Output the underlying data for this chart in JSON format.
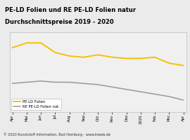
{
  "title_line1": "PE-LD Folien und RE PE-LD Folien natur",
  "title_line2": "Durchschnittspreise 2019 - 2020",
  "title_bg": "#f5c200",
  "title_color": "#000000",
  "footer": "© 2020 Kunststoff Information, Bad Homburg - www.kiweb.de",
  "footer_bg": "#b0b0b0",
  "x_labels": [
    "Apr",
    "Mai",
    "Jun",
    "Jul",
    "Aug",
    "Sep",
    "Okt",
    "Nov",
    "Dez",
    "2020",
    "Feb",
    "Mrz",
    "Apr"
  ],
  "pe_ld_folien": [
    92,
    96,
    96,
    88,
    85,
    84,
    86,
    84,
    83,
    83,
    84,
    79,
    77
  ],
  "re_pe_ld_folien": [
    62,
    63,
    64,
    63,
    63,
    62,
    61,
    59,
    57,
    55,
    53,
    51,
    48
  ],
  "line_color_yellow": "#f5c200",
  "line_color_gray": "#999999",
  "plot_bg": "#ebebeb",
  "chart_bg": "#f0f0f0",
  "chart_border": "#bbbbbb",
  "ylim_min": 38,
  "ylim_max": 105,
  "legend_label_yellow": "PE-LD Folien",
  "legend_label_gray": "RE PE-LD Folien nat.",
  "title_fontsize": 6.0,
  "tick_fontsize": 3.8,
  "legend_fontsize": 3.8,
  "footer_fontsize": 3.5
}
